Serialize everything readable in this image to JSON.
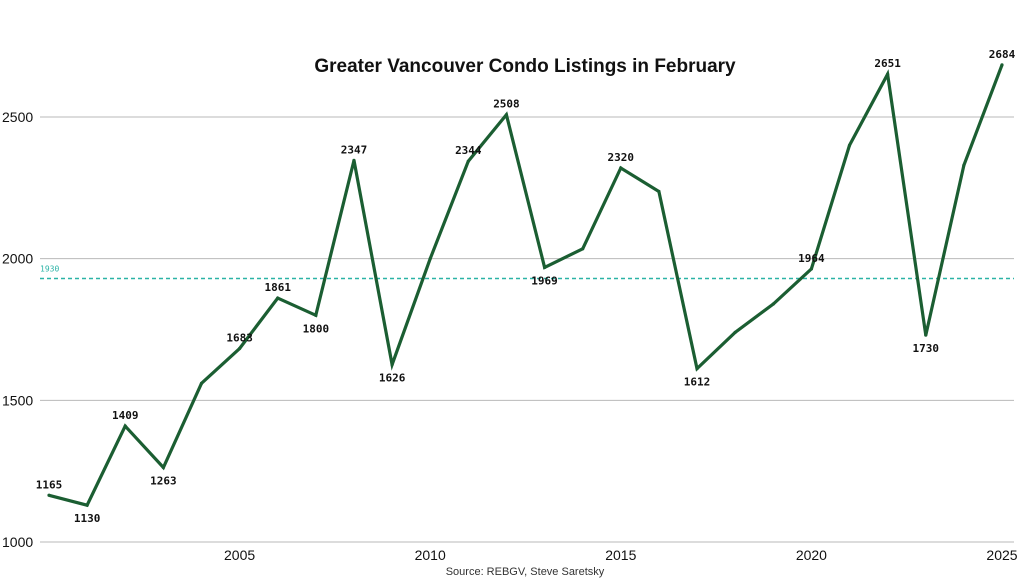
{
  "chart_data": {
    "type": "line",
    "title": "Greater Vancouver Condo Listings in February",
    "source": "Source: REBGV, Steve Saretsky",
    "xlabel": "",
    "ylabel": "",
    "xlim": [
      2000,
      2025
    ],
    "ylim": [
      1000,
      2700
    ],
    "xticks": [
      "2005",
      "2010",
      "2015",
      "2020",
      "2025"
    ],
    "yticks": [
      "1000",
      "1500",
      "2000",
      "2500"
    ],
    "grid": "horizontal",
    "line_color": "#1b5e32",
    "reference_line": {
      "value": 1930,
      "label": "1930",
      "color": "#2bb3a6"
    },
    "series": [
      {
        "x": [
          2000,
          2001,
          2002,
          2003,
          2004,
          2005,
          2006,
          2007,
          2008,
          2009,
          2010,
          2011,
          2012,
          2013,
          2014,
          2015,
          2016,
          2017,
          2018,
          2019,
          2020,
          2021,
          2022,
          2023,
          2024,
          2025
        ],
        "values": [
          1165,
          1130,
          1409,
          1263,
          1560,
          1683,
          1861,
          1800,
          2347,
          1626,
          2000,
          2344,
          2508,
          1969,
          2035,
          2320,
          2237,
          1612,
          1740,
          1840,
          1964,
          2400,
          2651,
          1730,
          2330,
          2684
        ]
      }
    ],
    "data_labels": [
      {
        "x": 2000,
        "text": "1165",
        "pos": "above"
      },
      {
        "x": 2001,
        "text": "1130",
        "pos": "below"
      },
      {
        "x": 2002,
        "text": "1409",
        "pos": "above"
      },
      {
        "x": 2003,
        "text": "1263",
        "pos": "below"
      },
      {
        "x": 2005,
        "text": "1683",
        "pos": "above"
      },
      {
        "x": 2006,
        "text": "1861",
        "pos": "above"
      },
      {
        "x": 2007,
        "text": "1800",
        "pos": "below"
      },
      {
        "x": 2008,
        "text": "2347",
        "pos": "above"
      },
      {
        "x": 2009,
        "text": "1626",
        "pos": "below"
      },
      {
        "x": 2011,
        "text": "2344",
        "pos": "above"
      },
      {
        "x": 2012,
        "text": "2508",
        "pos": "above"
      },
      {
        "x": 2013,
        "text": "1969",
        "pos": "below"
      },
      {
        "x": 2015,
        "text": "2320",
        "pos": "above"
      },
      {
        "x": 2017,
        "text": "1612",
        "pos": "below"
      },
      {
        "x": 2020,
        "text": "1964",
        "pos": "above"
      },
      {
        "x": 2022,
        "text": "2651",
        "pos": "above"
      },
      {
        "x": 2023,
        "text": "1730",
        "pos": "below"
      },
      {
        "x": 2025,
        "text": "2684",
        "pos": "above"
      }
    ]
  }
}
